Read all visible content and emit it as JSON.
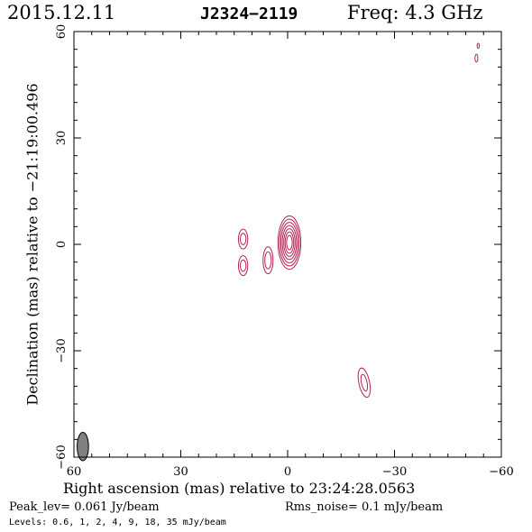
{
  "header": {
    "date": "2015.12.11",
    "source": "J2324−2119",
    "freq": "Freq: 4.3 GHz"
  },
  "footer": {
    "peak": "Peak_lev=  0.061 Jy/beam",
    "rms": "Rms_noise=   0.1 mJy/beam",
    "levels": "Levels: 0.6,    1,    2,    4,    9,   18,   35 mJy/beam"
  },
  "colors": {
    "accent": "#b5234f",
    "beam": "#808080"
  },
  "chart_data": {
    "type": "contour",
    "xlabel": "Right ascension (mas) relative to 23:24:28.0563",
    "ylabel": "Declination (mas) relative to −21:19:00.496",
    "xlim": [
      60,
      -60
    ],
    "ylim": [
      -60,
      60
    ],
    "xticks": [
      60,
      30,
      0,
      -30,
      -60
    ],
    "yticks": [
      -60,
      -30,
      0,
      30,
      60
    ],
    "xtick_labels": [
      "60",
      "30",
      "0",
      "−30",
      "−60"
    ],
    "ytick_labels": [
      "−60",
      "−30",
      "0",
      "30",
      "60"
    ],
    "grid": false,
    "levels_mJy": [
      0.6,
      1,
      2,
      4,
      9,
      18,
      35
    ],
    "components": [
      {
        "x": -0.5,
        "y": 0.5,
        "rx": [
          3.2,
          2.8,
          2.4,
          2.0,
          1.6,
          1.2,
          0.8
        ],
        "ry": [
          7.5,
          6.6,
          5.7,
          4.8,
          3.9,
          3.0,
          2.0
        ],
        "angle": 0
      },
      {
        "x": 5.5,
        "y": -4.5,
        "rx": [
          1.4,
          0.9
        ],
        "ry": [
          3.8,
          2.4
        ],
        "angle": 0
      },
      {
        "x": 12.5,
        "y": 1.5,
        "rx": [
          1.3,
          0.8
        ],
        "ry": [
          2.8,
          1.6
        ],
        "angle": 0
      },
      {
        "x": 12.5,
        "y": -6.0,
        "rx": [
          1.3,
          0.8
        ],
        "ry": [
          2.8,
          1.6
        ],
        "angle": 0
      },
      {
        "x": -21.5,
        "y": -39.0,
        "rx": [
          1.5,
          0.8
        ],
        "ry": [
          4.2,
          2.4
        ],
        "angle": -12
      },
      {
        "x": -53.0,
        "y": 52.5,
        "rx": [
          0.4
        ],
        "ry": [
          1.1
        ],
        "angle": 0
      },
      {
        "x": -53.5,
        "y": 56.0,
        "rx": [
          0.3
        ],
        "ry": [
          0.7
        ],
        "angle": 0
      }
    ],
    "beam": {
      "x": 57.5,
      "y": -57.0,
      "major": 4.0,
      "minor": 1.6,
      "angle": 0
    }
  }
}
